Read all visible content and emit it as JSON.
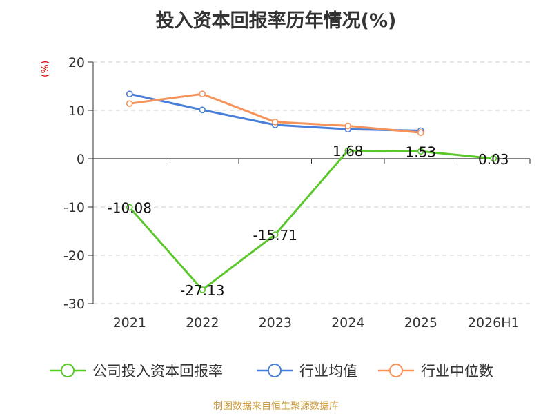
{
  "chart_data": {
    "type": "line",
    "title": "投入资本回报率历年情况(%)",
    "ylabel": "(%)",
    "categories": [
      "2021",
      "2022",
      "2023",
      "2024",
      "2025",
      "2026H1"
    ],
    "ylim": [
      -30,
      20
    ],
    "yticks": [
      20,
      10,
      0,
      -10,
      -20,
      -30
    ],
    "grid": true,
    "legend_position": "bottom",
    "series": [
      {
        "name": "公司投入资本回报率",
        "color": "#5ac82b",
        "values": [
          -10.08,
          -27.13,
          -15.71,
          1.68,
          1.53,
          0.03
        ],
        "labels": [
          "-10.08",
          "-27.13",
          "-15.71",
          "1.68",
          "1.53",
          "0.03"
        ]
      },
      {
        "name": "行业均值",
        "color": "#4a7fd8",
        "values": [
          13.4,
          10.1,
          7.0,
          6.1,
          5.8,
          null
        ]
      },
      {
        "name": "行业中位数",
        "color": "#f5935a",
        "values": [
          11.4,
          13.4,
          7.6,
          6.8,
          5.4,
          null
        ]
      }
    ]
  },
  "source": "制图数据来自恒生聚源数据库"
}
